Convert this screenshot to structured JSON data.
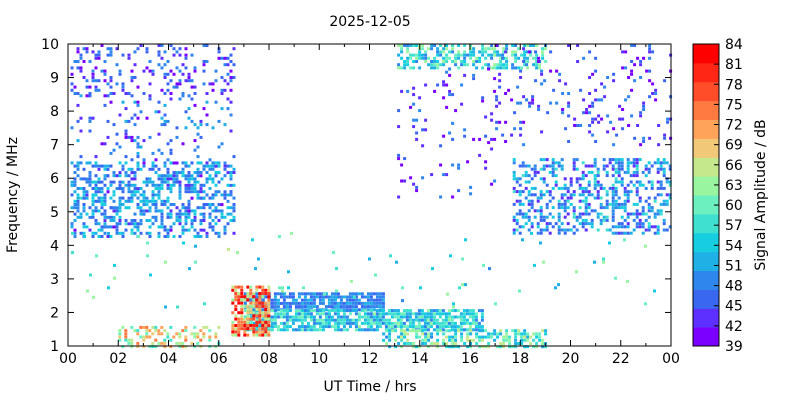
{
  "chart_data": {
    "type": "scatter",
    "title": "2025-12-05",
    "xlabel": "UT Time / hrs",
    "ylabel": "Frequency / MHz",
    "colorbar_label": "Signal Amplitude / dB",
    "xlim": [
      0,
      24
    ],
    "ylim": [
      1,
      10
    ],
    "x_ticks": [
      "00",
      "02",
      "04",
      "06",
      "08",
      "10",
      "12",
      "14",
      "16",
      "18",
      "20",
      "22",
      "00"
    ],
    "y_ticks": [
      "1",
      "2",
      "3",
      "4",
      "5",
      "6",
      "7",
      "8",
      "9",
      "10"
    ],
    "colorbar_ticks": [
      "39",
      "42",
      "45",
      "48",
      "51",
      "54",
      "57",
      "60",
      "63",
      "66",
      "69",
      "72",
      "75",
      "78",
      "81",
      "84"
    ],
    "colorbar_range": [
      39,
      84
    ],
    "colorbar_colors": [
      "#7a00ff",
      "#5e30ff",
      "#3a67f0",
      "#2f86ec",
      "#1fb0e6",
      "#17cde0",
      "#3fe0d0",
      "#6df0c0",
      "#99f5a0",
      "#c6e88c",
      "#f0c878",
      "#ffa35a",
      "#ff7a40",
      "#ff4d2a",
      "#ff2616",
      "#ff0000"
    ],
    "grid": false,
    "series_regions": [
      {
        "t": [
          0.1,
          6.6
        ],
        "f": [
          8.5,
          10.0
        ],
        "amp": [
          39,
          50
        ],
        "density": 0.22
      },
      {
        "t": [
          0.1,
          6.6
        ],
        "f": [
          4.4,
          8.5
        ],
        "amp": [
          40,
          52
        ],
        "density": 0.1
      },
      {
        "t": [
          0.1,
          6.6
        ],
        "f": [
          4.3,
          6.5
        ],
        "amp": [
          44,
          56
        ],
        "density": 0.38
      },
      {
        "t": [
          13.1,
          19.0
        ],
        "f": [
          9.3,
          10.0
        ],
        "amp": [
          48,
          64
        ],
        "density": 0.55
      },
      {
        "t": [
          13.1,
          17.0
        ],
        "f": [
          5.4,
          9.3
        ],
        "amp": [
          39,
          50
        ],
        "density": 0.06
      },
      {
        "t": [
          17.0,
          24.0
        ],
        "f": [
          7.0,
          10.0
        ],
        "amp": [
          39,
          50
        ],
        "density": 0.1
      },
      {
        "t": [
          17.7,
          24.0
        ],
        "f": [
          4.4,
          6.6
        ],
        "amp": [
          42,
          57
        ],
        "density": 0.42
      },
      {
        "t": [
          7.0,
          12.5
        ],
        "f": [
          2.1,
          2.6
        ],
        "amp": [
          45,
          52
        ],
        "density": 0.85
      },
      {
        "t": [
          7.0,
          16.5
        ],
        "f": [
          1.5,
          2.1
        ],
        "amp": [
          48,
          62
        ],
        "density": 0.8
      },
      {
        "t": [
          6.5,
          8.0
        ],
        "f": [
          1.3,
          2.8
        ],
        "amp": [
          63,
          84
        ],
        "density": 0.75
      },
      {
        "t": [
          2.0,
          6.0
        ],
        "f": [
          1.0,
          1.6
        ],
        "amp": [
          57,
          74
        ],
        "density": 0.45
      },
      {
        "t": [
          12.5,
          19.0
        ],
        "f": [
          1.0,
          1.5
        ],
        "amp": [
          50,
          66
        ],
        "density": 0.55
      },
      {
        "t": [
          0.0,
          24.0
        ],
        "f": [
          2.2,
          4.4
        ],
        "amp": [
          50,
          65
        ],
        "density": 0.02
      }
    ]
  }
}
